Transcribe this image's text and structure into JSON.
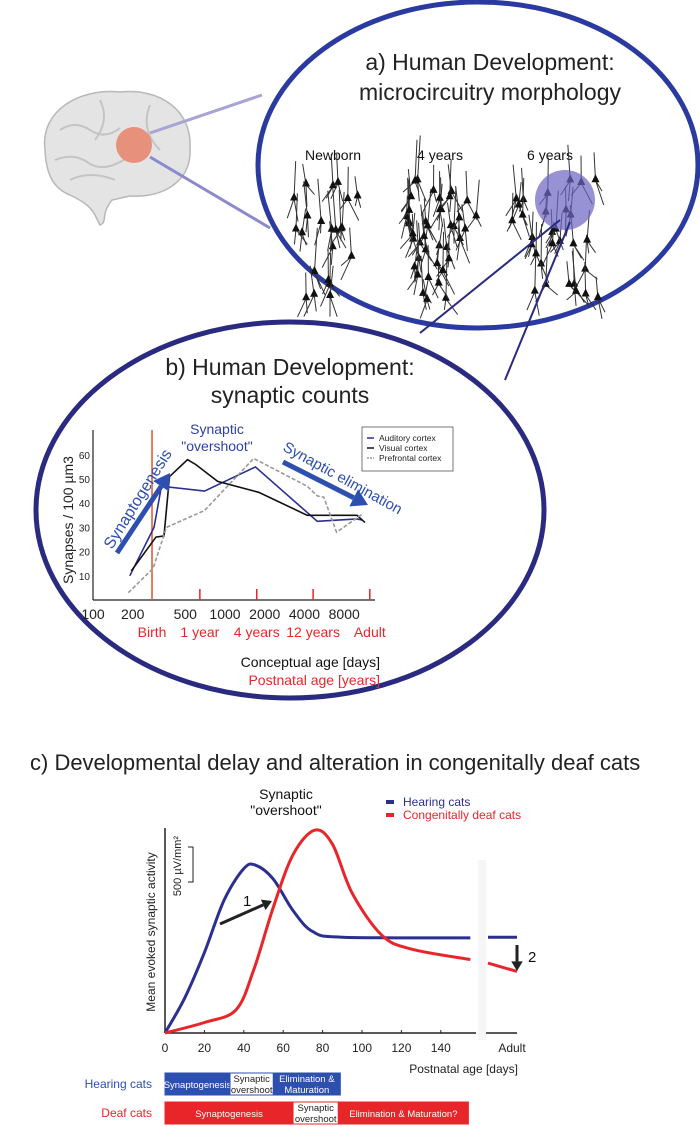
{
  "colors": {
    "blue": "#2b2f8f",
    "bright_blue": "#2d4fb0",
    "red": "#e8262a",
    "orange": "#e0542a",
    "ellipse": "#2a3aa0"
  },
  "panel_a": {
    "title_line1": "a) Human Development:",
    "title_line2": "microcircuitry morphology",
    "labels": [
      "Newborn",
      "4 years",
      "6 years"
    ]
  },
  "panel_b": {
    "title_line1": "b) Human Development:",
    "title_line2": "synaptic counts",
    "overshoot_line1": "Synaptic",
    "overshoot_line2": "\"overshoot\"",
    "synaptogenesis": "Synaptogenesis",
    "elimination": "Synaptic elimination",
    "conceptual_age": "Conceptual age [days]",
    "postnatal_age": "Postnatal age [years]"
  },
  "panel_c": {
    "title": "c) Developmental delay and alteration in congenitally deaf cats",
    "overshoot_line1": "Synaptic",
    "overshoot_line2": "\"overshoot\"",
    "scale_bar": "500 µV/mm²",
    "arrow1": "1",
    "arrow2": "2",
    "bars": [
      {
        "label": "Hearing cats",
        "segments": [
          {
            "text": "Synaptogenesis",
            "from": 0,
            "to": 33
          },
          {
            "text1": "Synaptic",
            "text2": "overshoot",
            "from": 33,
            "to": 55
          },
          {
            "text1": "Elimination &",
            "text2": "Maturation",
            "from": 55,
            "to": 89
          }
        ]
      },
      {
        "label": "Deaf cats",
        "segments": [
          {
            "text": "Synaptogenesis",
            "from": 0,
            "to": 65
          },
          {
            "text1": "Synaptic",
            "text2": "overshoot",
            "from": 65,
            "to": 88
          },
          {
            "text": "Elimination & Maturation?",
            "from": 88,
            "to": 154
          }
        ]
      }
    ]
  },
  "chart_data": [
    {
      "type": "line",
      "title": "b) Human Development: synaptic counts",
      "xlabel": "Conceptual age [days]",
      "xlabel2": "Postnatal age [years]",
      "ylabel": "Synapses / 100 µm3",
      "xscale": "log",
      "xlim": [
        100,
        13000
      ],
      "ylim": [
        0,
        70
      ],
      "xticks": [
        100,
        200,
        500,
        1000,
        2000,
        4000,
        8000
      ],
      "yticks": [
        10,
        20,
        30,
        40,
        50,
        60
      ],
      "postnatal_ticks": [
        {
          "label": "Birth",
          "x": 280
        },
        {
          "label": "1 year",
          "x": 645
        },
        {
          "label": "4 years",
          "x": 1740
        },
        {
          "label": "12 years",
          "x": 4650
        },
        {
          "label": "Adult",
          "x": 12500
        }
      ],
      "legend": "top-right",
      "series": [
        {
          "name": "Auditory cortex",
          "color": "#2b2f8f",
          "points": [
            [
              190,
              10
            ],
            [
              290,
              30
            ],
            [
              330,
              47
            ],
            [
              700,
              45
            ],
            [
              1700,
              55
            ],
            [
              5000,
              32.5
            ],
            [
              10000,
              33.5
            ],
            [
              11000,
              33
            ]
          ]
        },
        {
          "name": "Visual cortex",
          "color": "#111111",
          "points": [
            [
              195,
              12
            ],
            [
              300,
              26
            ],
            [
              345,
              26.5
            ],
            [
              380,
              51
            ],
            [
              520,
              58
            ],
            [
              600,
              56
            ],
            [
              880,
              49
            ],
            [
              1800,
              44.5
            ],
            [
              4200,
              35
            ],
            [
              10000,
              35
            ],
            [
              11500,
              32
            ]
          ]
        },
        {
          "name": "Prefrontal cortex",
          "color": "#999999",
          "dashed": true,
          "points": [
            [
              185,
              3
            ],
            [
              285,
              13
            ],
            [
              360,
              30
            ],
            [
              700,
              37
            ],
            [
              1650,
              58.5
            ],
            [
              4200,
              47
            ],
            [
              5000,
              43
            ],
            [
              5600,
              42.5
            ],
            [
              7000,
              28
            ],
            [
              11000,
              35.5
            ]
          ]
        }
      ]
    },
    {
      "type": "line",
      "title": "c) Developmental delay and alteration in congenitally deaf cats",
      "xlabel": "Postnatal age [days]",
      "ylabel": "Mean evoked synaptic activity",
      "xlim": [
        0,
        160
      ],
      "xticks": [
        0,
        20,
        40,
        60,
        80,
        100,
        120,
        140,
        "Adult"
      ],
      "legend": "top-right",
      "series": [
        {
          "name": "Hearing cats",
          "color": "#2b2f8f",
          "points": [
            [
              0,
              0
            ],
            [
              10,
              500
            ],
            [
              20,
              1150
            ],
            [
              30,
              1900
            ],
            [
              40,
              2350
            ],
            [
              46,
              2400
            ],
            [
              55,
              2200
            ],
            [
              65,
              1750
            ],
            [
              75,
              1450
            ],
            [
              90,
              1370
            ],
            [
              155,
              1360
            ]
          ],
          "adult": [
            1370,
            1370
          ]
        },
        {
          "name": "Congenitally deaf cats",
          "color": "#e8262a",
          "points": [
            [
              0,
              0
            ],
            [
              20,
              150
            ],
            [
              36,
              330
            ],
            [
              45,
              900
            ],
            [
              55,
              1800
            ],
            [
              65,
              2550
            ],
            [
              76,
              2900
            ],
            [
              85,
              2700
            ],
            [
              95,
              2000
            ],
            [
              110,
              1400
            ],
            [
              125,
              1200
            ],
            [
              155,
              1050
            ]
          ],
          "adult": [
            1000,
            880
          ]
        }
      ]
    }
  ]
}
